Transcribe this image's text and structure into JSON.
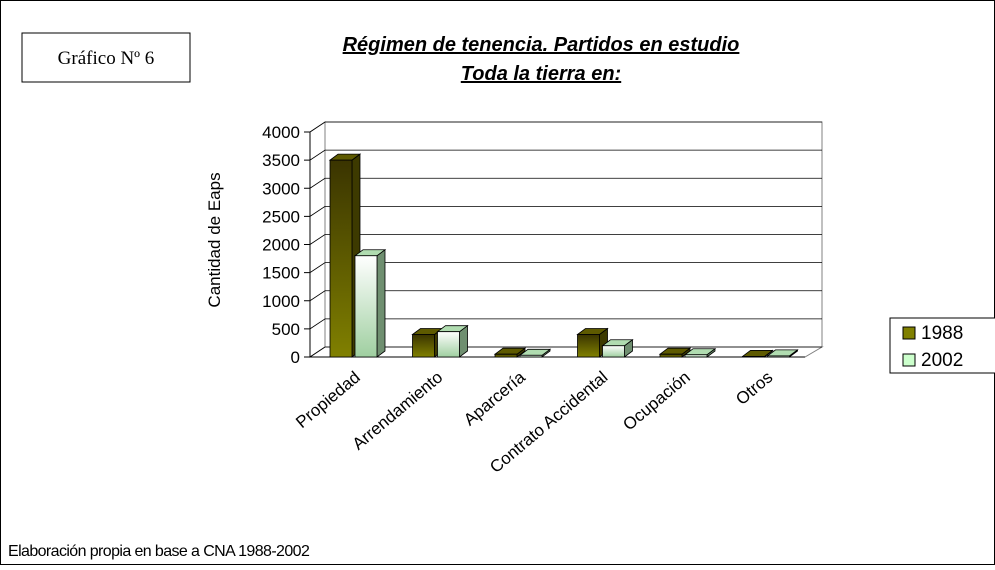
{
  "chart_data": {
    "type": "bar3d",
    "label": "Gráfico Nº 6",
    "title": "Régimen de tenencia. Partidos en estudio",
    "subtitle": "Toda la tierra en:",
    "y_label": "Cantidad de Eaps",
    "footnote": "Elaboración propia en base a CNA 1988-2002",
    "categories": [
      "Propiedad",
      "Arrendamiento",
      "Aparcería",
      "Contrato Accidental",
      "Ocupación",
      "Otros"
    ],
    "series": [
      {
        "name": "1988",
        "color": "#808000",
        "values": [
          3500,
          400,
          50,
          400,
          50,
          10
        ]
      },
      {
        "name": "2002",
        "color": "#ccffcc",
        "values": [
          1800,
          450,
          30,
          200,
          40,
          20
        ]
      }
    ],
    "ylim": [
      0,
      4000
    ],
    "yticks": [
      0,
      500,
      1000,
      1500,
      2000,
      2500,
      3000,
      3500,
      4000
    ],
    "grid": true,
    "legend": "right"
  }
}
